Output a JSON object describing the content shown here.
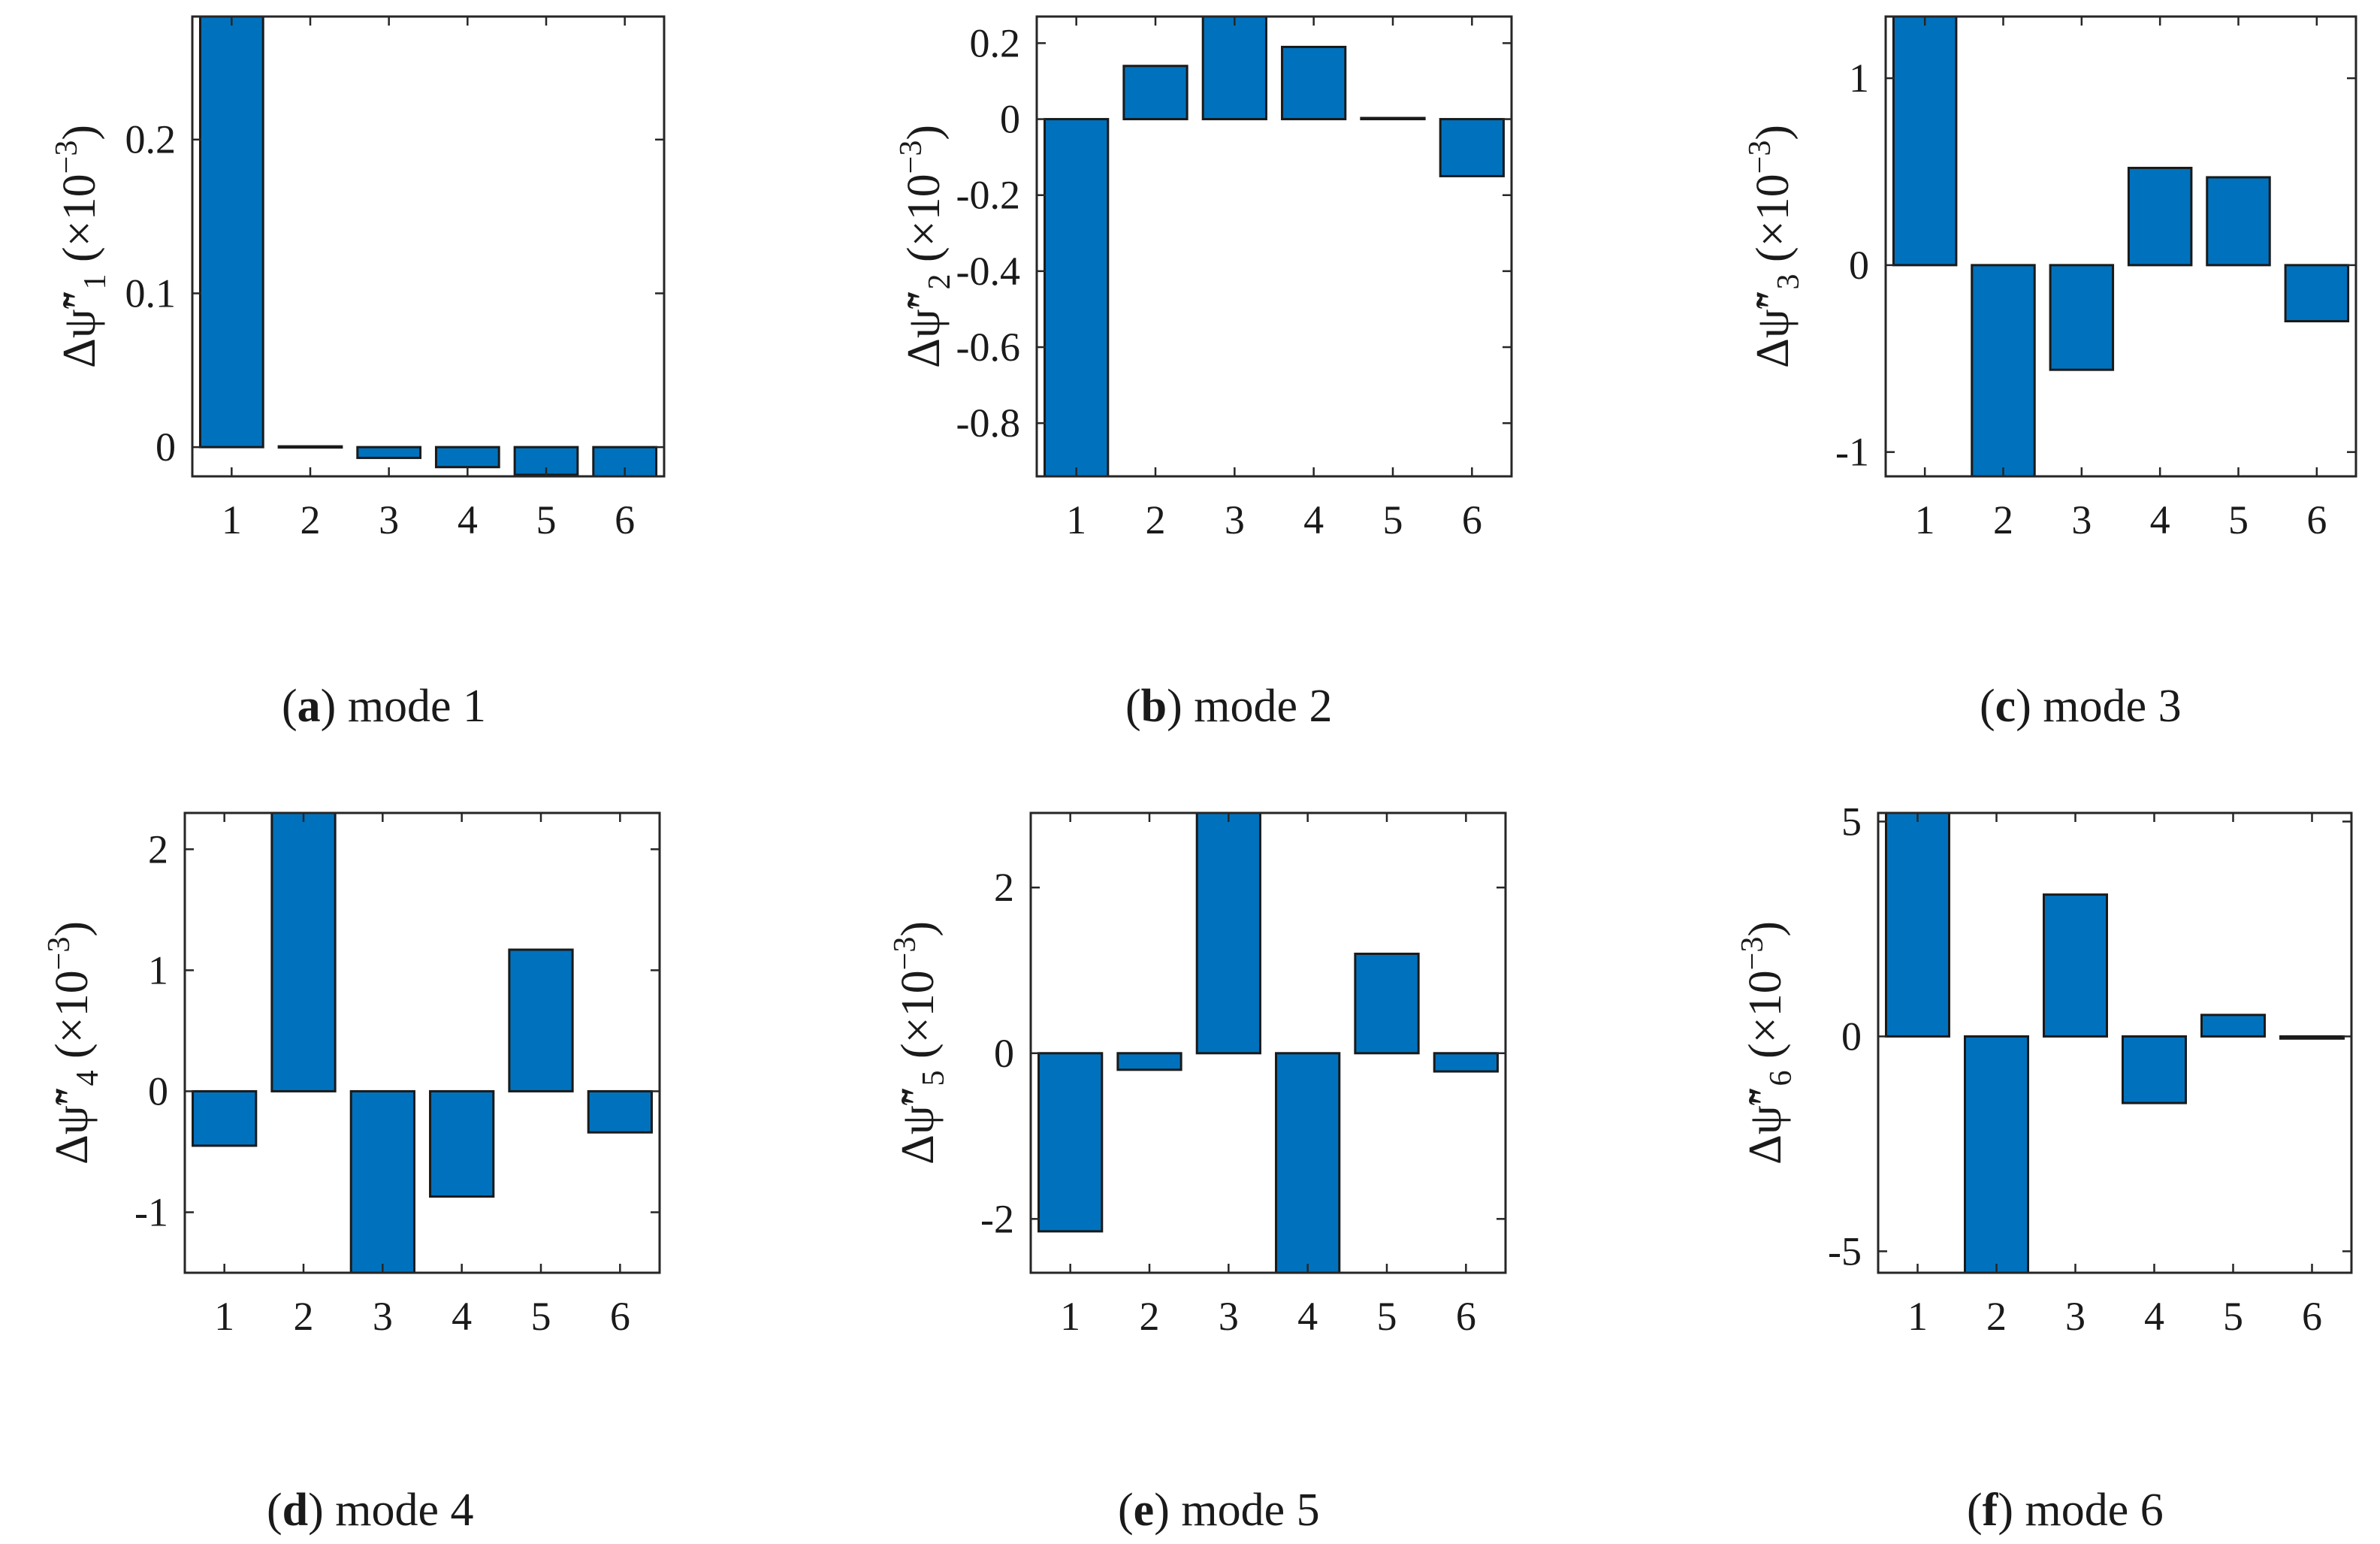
{
  "figure": {
    "colors": {
      "bar": "#0072BD",
      "axis": "#262626",
      "bar_edge": "#1a1a1a"
    },
    "panels": [
      {
        "id": "a",
        "caption": {
          "open": "(",
          "tag": "a",
          "close": ")",
          "text": " mode 1"
        },
        "ylabel": {
          "symbol": "Δψ̃″",
          "sub": "1",
          "unit": " (×10",
          "exp": "−3",
          "unit_close": ")"
        },
        "chart_data": {
          "type": "bar",
          "title": "mode 1",
          "xlabel": "",
          "ylabel": "Δψ̃″1 (×10−3)",
          "categories": [
            "1",
            "2",
            "3",
            "4",
            "5",
            "6"
          ],
          "values": [
            0.28,
            0.0005,
            -0.007,
            -0.013,
            -0.018,
            -0.02
          ],
          "ylim": [
            -0.019,
            0.28
          ],
          "yticks": [
            0,
            0.1,
            0.2
          ],
          "ytick_labels": [
            "0",
            "0.1",
            "0.2"
          ]
        }
      },
      {
        "id": "b",
        "caption": {
          "open": "(",
          "tag": "b",
          "close": ")",
          "text": " mode 2"
        },
        "ylabel": {
          "symbol": "Δψ̃″",
          "sub": "2",
          "unit": " (×10",
          "exp": "−3",
          "unit_close": ")"
        },
        "chart_data": {
          "type": "bar",
          "title": "mode 2",
          "xlabel": "",
          "ylabel": "Δψ̃″2 (×10−3)",
          "categories": [
            "1",
            "2",
            "3",
            "4",
            "5",
            "6"
          ],
          "values": [
            -0.94,
            0.14,
            0.27,
            0.19,
            0.003,
            -0.15
          ],
          "ylim": [
            -0.94,
            0.27
          ],
          "yticks": [
            -0.8,
            -0.6,
            -0.4,
            -0.2,
            0,
            0.2
          ],
          "ytick_labels": [
            "-0.8",
            "-0.6",
            "-0.4",
            "-0.2",
            "0",
            "0.2"
          ]
        }
      },
      {
        "id": "c",
        "caption": {
          "open": "(",
          "tag": "c",
          "close": ")",
          "text": " mode 3"
        },
        "ylabel": {
          "symbol": "Δψ̃″",
          "sub": "3",
          "unit": " (×10",
          "exp": "−3",
          "unit_close": ")"
        },
        "chart_data": {
          "type": "bar",
          "title": "mode 3",
          "xlabel": "",
          "ylabel": "Δψ̃″3 (×10−3)",
          "categories": [
            "1",
            "2",
            "3",
            "4",
            "5",
            "6"
          ],
          "values": [
            1.33,
            -1.13,
            -0.56,
            0.52,
            0.47,
            -0.3
          ],
          "ylim": [
            -1.13,
            1.33
          ],
          "yticks": [
            -1,
            0,
            1
          ],
          "ytick_labels": [
            "-1",
            "0",
            "1"
          ]
        }
      },
      {
        "id": "d",
        "caption": {
          "open": "(",
          "tag": "d",
          "close": ")",
          "text": " mode 4"
        },
        "ylabel": {
          "symbol": "Δψ̃″",
          "sub": "4",
          "unit": " (×10",
          "exp": "−3",
          "unit_close": ")"
        },
        "chart_data": {
          "type": "bar",
          "title": "mode 4",
          "xlabel": "",
          "ylabel": "Δψ̃″4 (×10−3)",
          "categories": [
            "1",
            "2",
            "3",
            "4",
            "5",
            "6"
          ],
          "values": [
            -0.45,
            2.3,
            -1.5,
            -0.87,
            1.17,
            -0.34
          ],
          "ylim": [
            -1.5,
            2.3
          ],
          "yticks": [
            -1,
            0,
            1,
            2
          ],
          "ytick_labels": [
            "-1",
            "0",
            "1",
            "2"
          ]
        }
      },
      {
        "id": "e",
        "caption": {
          "open": "(",
          "tag": "e",
          "close": ")",
          "text": " mode 5"
        },
        "ylabel": {
          "symbol": "Δψ̃″",
          "sub": "5",
          "unit": " (×10",
          "exp": "−3",
          "unit_close": ")"
        },
        "chart_data": {
          "type": "bar",
          "title": "mode 5",
          "xlabel": "",
          "ylabel": "Δψ̃″5 (×10−3)",
          "categories": [
            "1",
            "2",
            "3",
            "4",
            "5",
            "6"
          ],
          "values": [
            -2.15,
            -0.2,
            2.9,
            -2.65,
            1.2,
            -0.22
          ],
          "ylim": [
            -2.65,
            2.9
          ],
          "yticks": [
            -2,
            0,
            2
          ],
          "ytick_labels": [
            "-2",
            "0",
            "2"
          ]
        }
      },
      {
        "id": "f",
        "caption": {
          "open": "(",
          "tag": "f",
          "close": ")",
          "text": " mode 6"
        },
        "ylabel": {
          "symbol": "Δψ̃″",
          "sub": "6",
          "unit": " (×10",
          "exp": "−3",
          "unit_close": ")"
        },
        "chart_data": {
          "type": "bar",
          "title": "mode 6",
          "xlabel": "",
          "ylabel": "Δψ̃″6 (×10−3)",
          "categories": [
            "1",
            "2",
            "3",
            "4",
            "5",
            "6"
          ],
          "values": [
            5.2,
            -5.5,
            3.3,
            -1.55,
            0.5,
            -0.05
          ],
          "ylim": [
            -5.5,
            5.2
          ],
          "yticks": [
            -5,
            0,
            5
          ],
          "ytick_labels": [
            "-5",
            "0",
            "5"
          ]
        }
      }
    ]
  }
}
